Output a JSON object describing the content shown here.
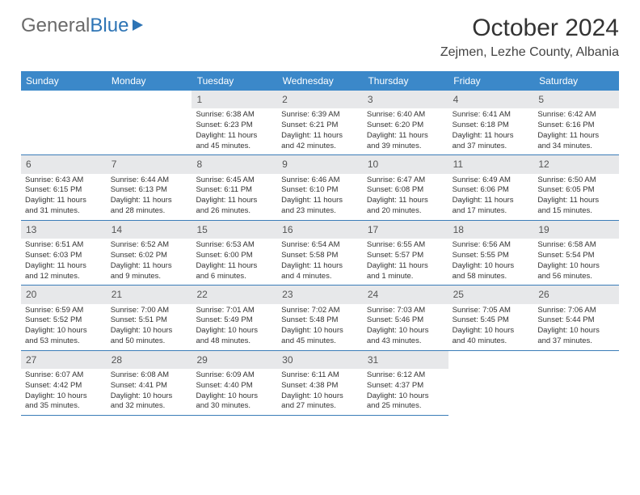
{
  "logo": {
    "text1": "General",
    "text2": "Blue",
    "color1": "#6a6a6a",
    "color2": "#2d74b5",
    "icon_color": "#2d74b5"
  },
  "header": {
    "title": "October 2024",
    "location": "Zejmen, Lezhe County, Albania"
  },
  "style": {
    "header_bg": "#3b88c9",
    "header_text": "#ffffff",
    "daynum_bg": "#e7e8ea",
    "border": "#3b7db8",
    "body_text": "#333333"
  },
  "weekdays": [
    "Sunday",
    "Monday",
    "Tuesday",
    "Wednesday",
    "Thursday",
    "Friday",
    "Saturday"
  ],
  "weeks": [
    [
      {
        "empty": true
      },
      {
        "empty": true
      },
      {
        "n": "1",
        "sunrise": "6:38 AM",
        "sunset": "6:23 PM",
        "daylight": "11 hours and 45 minutes."
      },
      {
        "n": "2",
        "sunrise": "6:39 AM",
        "sunset": "6:21 PM",
        "daylight": "11 hours and 42 minutes."
      },
      {
        "n": "3",
        "sunrise": "6:40 AM",
        "sunset": "6:20 PM",
        "daylight": "11 hours and 39 minutes."
      },
      {
        "n": "4",
        "sunrise": "6:41 AM",
        "sunset": "6:18 PM",
        "daylight": "11 hours and 37 minutes."
      },
      {
        "n": "5",
        "sunrise": "6:42 AM",
        "sunset": "6:16 PM",
        "daylight": "11 hours and 34 minutes."
      }
    ],
    [
      {
        "n": "6",
        "sunrise": "6:43 AM",
        "sunset": "6:15 PM",
        "daylight": "11 hours and 31 minutes."
      },
      {
        "n": "7",
        "sunrise": "6:44 AM",
        "sunset": "6:13 PM",
        "daylight": "11 hours and 28 minutes."
      },
      {
        "n": "8",
        "sunrise": "6:45 AM",
        "sunset": "6:11 PM",
        "daylight": "11 hours and 26 minutes."
      },
      {
        "n": "9",
        "sunrise": "6:46 AM",
        "sunset": "6:10 PM",
        "daylight": "11 hours and 23 minutes."
      },
      {
        "n": "10",
        "sunrise": "6:47 AM",
        "sunset": "6:08 PM",
        "daylight": "11 hours and 20 minutes."
      },
      {
        "n": "11",
        "sunrise": "6:49 AM",
        "sunset": "6:06 PM",
        "daylight": "11 hours and 17 minutes."
      },
      {
        "n": "12",
        "sunrise": "6:50 AM",
        "sunset": "6:05 PM",
        "daylight": "11 hours and 15 minutes."
      }
    ],
    [
      {
        "n": "13",
        "sunrise": "6:51 AM",
        "sunset": "6:03 PM",
        "daylight": "11 hours and 12 minutes."
      },
      {
        "n": "14",
        "sunrise": "6:52 AM",
        "sunset": "6:02 PM",
        "daylight": "11 hours and 9 minutes."
      },
      {
        "n": "15",
        "sunrise": "6:53 AM",
        "sunset": "6:00 PM",
        "daylight": "11 hours and 6 minutes."
      },
      {
        "n": "16",
        "sunrise": "6:54 AM",
        "sunset": "5:58 PM",
        "daylight": "11 hours and 4 minutes."
      },
      {
        "n": "17",
        "sunrise": "6:55 AM",
        "sunset": "5:57 PM",
        "daylight": "11 hours and 1 minute."
      },
      {
        "n": "18",
        "sunrise": "6:56 AM",
        "sunset": "5:55 PM",
        "daylight": "10 hours and 58 minutes."
      },
      {
        "n": "19",
        "sunrise": "6:58 AM",
        "sunset": "5:54 PM",
        "daylight": "10 hours and 56 minutes."
      }
    ],
    [
      {
        "n": "20",
        "sunrise": "6:59 AM",
        "sunset": "5:52 PM",
        "daylight": "10 hours and 53 minutes."
      },
      {
        "n": "21",
        "sunrise": "7:00 AM",
        "sunset": "5:51 PM",
        "daylight": "10 hours and 50 minutes."
      },
      {
        "n": "22",
        "sunrise": "7:01 AM",
        "sunset": "5:49 PM",
        "daylight": "10 hours and 48 minutes."
      },
      {
        "n": "23",
        "sunrise": "7:02 AM",
        "sunset": "5:48 PM",
        "daylight": "10 hours and 45 minutes."
      },
      {
        "n": "24",
        "sunrise": "7:03 AM",
        "sunset": "5:46 PM",
        "daylight": "10 hours and 43 minutes."
      },
      {
        "n": "25",
        "sunrise": "7:05 AM",
        "sunset": "5:45 PM",
        "daylight": "10 hours and 40 minutes."
      },
      {
        "n": "26",
        "sunrise": "7:06 AM",
        "sunset": "5:44 PM",
        "daylight": "10 hours and 37 minutes."
      }
    ],
    [
      {
        "n": "27",
        "sunrise": "6:07 AM",
        "sunset": "4:42 PM",
        "daylight": "10 hours and 35 minutes."
      },
      {
        "n": "28",
        "sunrise": "6:08 AM",
        "sunset": "4:41 PM",
        "daylight": "10 hours and 32 minutes."
      },
      {
        "n": "29",
        "sunrise": "6:09 AM",
        "sunset": "4:40 PM",
        "daylight": "10 hours and 30 minutes."
      },
      {
        "n": "30",
        "sunrise": "6:11 AM",
        "sunset": "4:38 PM",
        "daylight": "10 hours and 27 minutes."
      },
      {
        "n": "31",
        "sunrise": "6:12 AM",
        "sunset": "4:37 PM",
        "daylight": "10 hours and 25 minutes."
      },
      {
        "blank": true
      },
      {
        "blank": true
      }
    ]
  ],
  "labels": {
    "sunrise": "Sunrise:",
    "sunset": "Sunset:",
    "daylight": "Daylight:"
  }
}
